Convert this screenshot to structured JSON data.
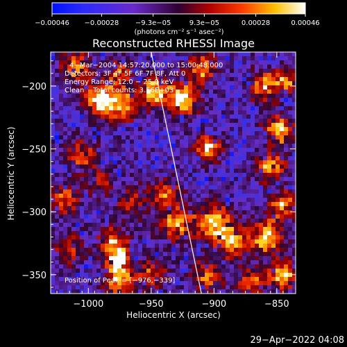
{
  "chart_data": {
    "type": "heatmap",
    "title": "Reconstructed RHESSI Image",
    "xlabel": "Heliocentric X (arcsec)",
    "ylabel": "Heliocentric Y (arcsec)",
    "xlim": [
      -1030,
      -835
    ],
    "ylim": [
      -365,
      -173
    ],
    "x_ticks": [
      {
        "value": -1000,
        "label": "−1000"
      },
      {
        "value": -950,
        "label": "−950"
      },
      {
        "value": -900,
        "label": "−900"
      },
      {
        "value": -850,
        "label": "−850"
      }
    ],
    "y_ticks": [
      {
        "value": -200,
        "label": "−200"
      },
      {
        "value": -250,
        "label": "−250"
      },
      {
        "value": -300,
        "label": "−300"
      },
      {
        "value": -350,
        "label": "−350"
      }
    ],
    "colorbar": {
      "colormap": "blue-purple-red-yellow-white",
      "range": [
        -0.00046,
        0.00046
      ],
      "ticks": [
        {
          "value": -0.00046,
          "label": "−0.00046"
        },
        {
          "value": -0.00028,
          "label": "−0.00028"
        },
        {
          "value": -9.3e-05,
          "label": "−9.3e−05"
        },
        {
          "value": 9.3e-05,
          "label": "9.3e−05"
        },
        {
          "value": 0.00028,
          "label": "0.00028"
        },
        {
          "value": 0.00046,
          "label": "0.00046"
        }
      ],
      "unit_label": "(photons cm⁻² s⁻¹ asec⁻²)"
    },
    "annotations": [
      "4−Mar−2004 14:57:20.000 to 15:00:48.000",
      "Detectors: 3F 4F 5F 6F 7F 8F, Att 0",
      "Energy Range: 12.0 − 25.0 keV",
      "Clean    Total counts: 3.56E+03"
    ],
    "peak_label": "Position of Peak = [−976,−339]",
    "peak": {
      "x": -976,
      "y": -339
    },
    "limb_line": [
      {
        "x": -950,
        "y": -173
      },
      {
        "x": -910,
        "y": -365
      }
    ],
    "hotspots": [
      {
        "x": -992,
        "y": -210,
        "amp": 1.0,
        "s": 8
      },
      {
        "x": -975,
        "y": -215,
        "amp": 0.8,
        "s": 10
      },
      {
        "x": -1010,
        "y": -185,
        "amp": 0.7,
        "s": 8
      },
      {
        "x": -975,
        "y": -190,
        "amp": 0.6,
        "s": 7
      },
      {
        "x": -948,
        "y": -205,
        "amp": 0.9,
        "s": 8
      },
      {
        "x": -925,
        "y": -210,
        "amp": 0.95,
        "s": 9
      },
      {
        "x": -910,
        "y": -185,
        "amp": 0.8,
        "s": 8
      },
      {
        "x": -1005,
        "y": -255,
        "amp": 0.6,
        "s": 8
      },
      {
        "x": -1020,
        "y": -290,
        "amp": 0.55,
        "s": 10
      },
      {
        "x": -990,
        "y": -275,
        "amp": 0.55,
        "s": 7
      },
      {
        "x": -965,
        "y": -292,
        "amp": 0.5,
        "s": 9
      },
      {
        "x": -938,
        "y": -285,
        "amp": 0.65,
        "s": 8
      },
      {
        "x": -930,
        "y": -310,
        "amp": 0.8,
        "s": 9
      },
      {
        "x": -905,
        "y": -250,
        "amp": 0.9,
        "s": 7
      },
      {
        "x": -900,
        "y": -310,
        "amp": 0.95,
        "s": 10
      },
      {
        "x": -885,
        "y": -325,
        "amp": 0.8,
        "s": 8
      },
      {
        "x": -905,
        "y": -350,
        "amp": 0.6,
        "s": 9
      },
      {
        "x": -980,
        "y": -325,
        "amp": 0.75,
        "s": 8
      },
      {
        "x": -976,
        "y": -339,
        "amp": 1.15,
        "s": 6
      },
      {
        "x": -975,
        "y": -355,
        "amp": 0.8,
        "s": 8
      },
      {
        "x": -950,
        "y": -350,
        "amp": 0.6,
        "s": 8
      },
      {
        "x": -1015,
        "y": -330,
        "amp": 0.5,
        "s": 8
      },
      {
        "x": -860,
        "y": -200,
        "amp": 0.75,
        "s": 8
      },
      {
        "x": -843,
        "y": -195,
        "amp": 0.8,
        "s": 6
      },
      {
        "x": -848,
        "y": -235,
        "amp": 0.9,
        "s": 8
      },
      {
        "x": -855,
        "y": -265,
        "amp": 0.8,
        "s": 8
      },
      {
        "x": -845,
        "y": -295,
        "amp": 0.85,
        "s": 7
      },
      {
        "x": -858,
        "y": -320,
        "amp": 0.95,
        "s": 9
      },
      {
        "x": -845,
        "y": -350,
        "amp": 0.85,
        "s": 8
      },
      {
        "x": -870,
        "y": -355,
        "amp": 0.6,
        "s": 8
      }
    ],
    "grid": false,
    "legend": "none"
  },
  "footer": {
    "timestamp": "29−Apr−2022 04:08"
  }
}
